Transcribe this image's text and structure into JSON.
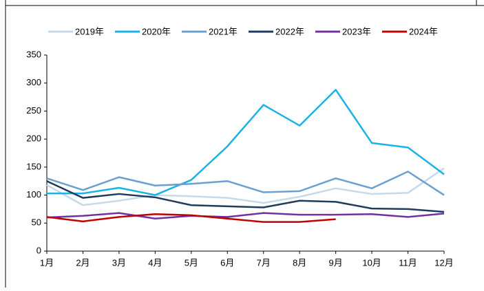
{
  "chart_data": {
    "type": "line",
    "categories": [
      "1月",
      "2月",
      "3月",
      "4月",
      "5月",
      "6月",
      "7月",
      "8月",
      "9月",
      "10月",
      "11月",
      "12月"
    ],
    "series": [
      {
        "name": "2019年",
        "color": "#c5d9ea",
        "values": [
          118,
          82,
          90,
          100,
          98,
          95,
          86,
          97,
          112,
          102,
          104,
          148
        ]
      },
      {
        "name": "2020年",
        "color": "#1ab0e8",
        "values": [
          103,
          103,
          113,
          100,
          127,
          187,
          261,
          224,
          288,
          193,
          185,
          137
        ]
      },
      {
        "name": "2021年",
        "color": "#6a9fd0",
        "values": [
          130,
          109,
          132,
          117,
          120,
          125,
          105,
          107,
          130,
          112,
          142,
          100
        ]
      },
      {
        "name": "2022年",
        "color": "#1f3c5c",
        "values": [
          125,
          95,
          102,
          96,
          82,
          80,
          78,
          90,
          88,
          76,
          75,
          70
        ]
      },
      {
        "name": "2023年",
        "color": "#7030a0",
        "values": [
          60,
          63,
          68,
          58,
          63,
          61,
          68,
          65,
          65,
          66,
          61,
          67
        ]
      },
      {
        "name": "2024年",
        "color": "#c00000",
        "values": [
          61,
          53,
          61,
          66,
          64,
          58,
          52,
          52,
          57,
          null,
          null,
          null
        ]
      }
    ],
    "ylim": [
      0,
      350
    ],
    "yticks": [
      0,
      50,
      100,
      150,
      200,
      250,
      300,
      350
    ],
    "legend": "top"
  }
}
